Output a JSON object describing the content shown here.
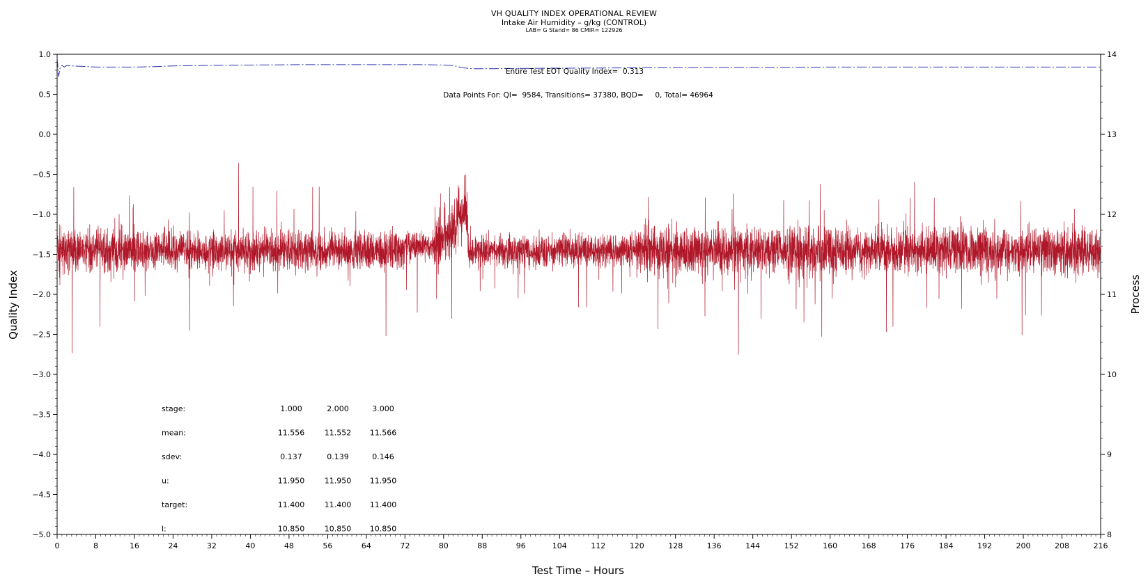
{
  "chart_data": {
    "type": "line",
    "title": "VH QUALITY INDEX OPERATIONAL REVIEW",
    "subtitle": "Intake Air Humidity – g/kg (CONTROL)",
    "subtitle2": "LAB= G Stand= 86 CMIR= 122926",
    "xlabel": "Test Time – Hours",
    "ylabel": "Quality Index",
    "y2label": "Process",
    "xlim": [
      0,
      216
    ],
    "ylim": [
      -5.0,
      1.0
    ],
    "y2lim": [
      8,
      14
    ],
    "x_ticks": [
      0,
      8,
      16,
      24,
      32,
      40,
      48,
      56,
      64,
      72,
      80,
      88,
      96,
      104,
      112,
      120,
      128,
      136,
      144,
      152,
      160,
      168,
      176,
      184,
      192,
      200,
      208,
      216
    ],
    "y_ticks": [
      "1.0",
      "0.5",
      "0.0",
      "−0.5",
      "−1.0",
      "−1.5",
      "−2.0",
      "−2.5",
      "−3.0",
      "−3.5",
      "−4.0",
      "−4.5",
      "−5.0"
    ],
    "y2_ticks": [
      14,
      13,
      12,
      11,
      10,
      9,
      8
    ],
    "grid": false,
    "annotations": {
      "quality_index": "Entire Test EOT Quality Index=  0.313",
      "data_points": "Data Points For: QI=  9584, Transitions= 37380, BQD=     0, Total= 46964"
    },
    "series": [
      {
        "axis": "left",
        "color": "#3030b0",
        "style": "dash-dot",
        "x": [
          0,
          0.3,
          0.6,
          1,
          1.5,
          2,
          3,
          5,
          8,
          12,
          16,
          20,
          24,
          30,
          40,
          50,
          60,
          70,
          76,
          80,
          82,
          84,
          86,
          90,
          100,
          120,
          140,
          160,
          180,
          200,
          216
        ],
        "values": [
          0.96,
          0.72,
          0.83,
          0.86,
          0.84,
          0.86,
          0.855,
          0.85,
          0.84,
          0.84,
          0.84,
          0.845,
          0.855,
          0.86,
          0.865,
          0.87,
          0.87,
          0.87,
          0.87,
          0.865,
          0.86,
          0.83,
          0.82,
          0.82,
          0.825,
          0.83,
          0.835,
          0.84,
          0.84,
          0.84,
          0.84
        ]
      },
      {
        "axis": "right",
        "color": "#b0182a",
        "style": "solid",
        "description_levels": [
          {
            "x_range": [
              0,
              72
            ],
            "center": 11.55,
            "spread": 0.17
          },
          {
            "x_range": [
              72,
              78
            ],
            "center": 11.6,
            "spread": 0.12
          },
          {
            "x_range": [
              78,
              85
            ],
            "center": 11.85,
            "spread": 0.25
          },
          {
            "x_range": [
              85,
              120
            ],
            "center": 11.55,
            "spread": 0.14
          },
          {
            "x_range": [
              120,
              216
            ],
            "center": 11.55,
            "spread": 0.2
          }
        ]
      }
    ],
    "stats_table": {
      "rows": [
        {
          "label": "stage:",
          "values": [
            "1.000",
            "2.000",
            "3.000"
          ]
        },
        {
          "label": "mean:",
          "values": [
            "11.556",
            "11.552",
            "11.566"
          ]
        },
        {
          "label": "sdev:",
          "values": [
            "0.137",
            "0.139",
            "0.146"
          ]
        },
        {
          "label": "u:",
          "values": [
            "11.950",
            "11.950",
            "11.950"
          ]
        },
        {
          "label": "target:",
          "values": [
            "11.400",
            "11.400",
            "11.400"
          ]
        },
        {
          "label": "l:",
          "values": [
            "10.850",
            "10.850",
            "10.850"
          ]
        }
      ]
    }
  }
}
